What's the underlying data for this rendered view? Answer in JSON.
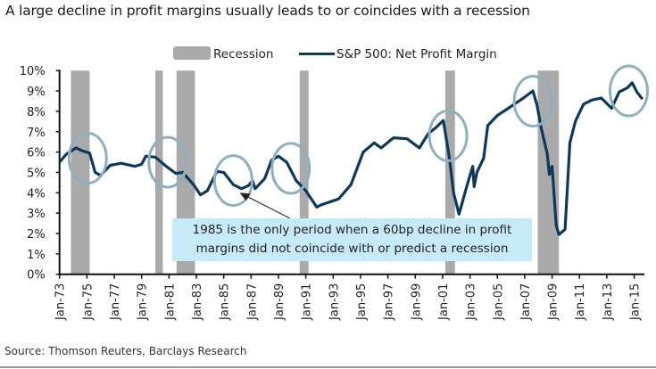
{
  "title": "A large decline in profit margins usually leads to or coincides with a recession",
  "source": "Source: Thomson Reuters, Barclays Research",
  "chart_data": {
    "type": "line",
    "title": "A large decline in profit margins usually leads to or coincides with a recession",
    "xlabel": "",
    "ylabel": "",
    "xlim": [
      1973,
      2015.75
    ],
    "ylim": [
      0,
      10
    ],
    "grid": false,
    "legend_position": "top",
    "legend": [
      {
        "label": "Recession",
        "kind": "band",
        "color": "#aaaaaa"
      },
      {
        "label": "S&P 500: Net Profit Margin",
        "kind": "line",
        "color": "#0d3a5c"
      }
    ],
    "y_ticks": [
      "0%",
      "1%",
      "2%",
      "3%",
      "4%",
      "5%",
      "6%",
      "7%",
      "8%",
      "9%",
      "10%"
    ],
    "x_ticks": [
      {
        "label": "Jan-73",
        "x": 1973
      },
      {
        "label": "Jan-75",
        "x": 1975
      },
      {
        "label": "Jan-77",
        "x": 1977
      },
      {
        "label": "Jan-79",
        "x": 1979
      },
      {
        "label": "Jan-81",
        "x": 1981
      },
      {
        "label": "Jan-83",
        "x": 1983
      },
      {
        "label": "Jan-85",
        "x": 1985
      },
      {
        "label": "Jan-87",
        "x": 1987
      },
      {
        "label": "Jan-89",
        "x": 1989
      },
      {
        "label": "Jan-91",
        "x": 1991
      },
      {
        "label": "Jan-93",
        "x": 1993
      },
      {
        "label": "Jan-95",
        "x": 1995
      },
      {
        "label": "Jan-97",
        "x": 1997
      },
      {
        "label": "Jan-99",
        "x": 1999
      },
      {
        "label": "Jan-01",
        "x": 2001
      },
      {
        "label": "Jan-03",
        "x": 2003
      },
      {
        "label": "Jan-05",
        "x": 2005
      },
      {
        "label": "Jan-07",
        "x": 2007
      },
      {
        "label": "Jan-09",
        "x": 2009
      },
      {
        "label": "Jan-11",
        "x": 2011
      },
      {
        "label": "Jan-13",
        "x": 2013
      },
      {
        "label": "Jan-15",
        "x": 2015
      }
    ],
    "recessions": [
      [
        1973.83,
        1975.2
      ],
      [
        1980.0,
        1980.55
      ],
      [
        1981.55,
        1982.9
      ],
      [
        1990.55,
        1991.2
      ],
      [
        2001.2,
        2001.9
      ],
      [
        2007.95,
        2009.5
      ]
    ],
    "series": [
      {
        "name": "S&P 500: Net Profit Margin",
        "color": "#0d3a5c",
        "x": [
          1973.0,
          1973.5,
          1974.2,
          1974.7,
          1975.2,
          1975.6,
          1976.0,
          1976.7,
          1977.5,
          1978.5,
          1979.0,
          1979.3,
          1980.0,
          1980.8,
          1981.5,
          1982.0,
          1982.8,
          1983.3,
          1983.8,
          1984.5,
          1985.0,
          1985.7,
          1986.3,
          1986.8,
          1987.1,
          1987.3,
          1988.0,
          1988.5,
          1989.0,
          1989.6,
          1990.3,
          1991.0,
          1991.8,
          1992.1,
          1993.4,
          1994.3,
          1995.2,
          1996.0,
          1996.5,
          1997.4,
          1998.4,
          1999.3,
          1999.95,
          2000.5,
          2001.05,
          2001.5,
          2001.8,
          2002.2,
          2002.8,
          2003.2,
          2003.3,
          2003.5,
          2004.0,
          2004.3,
          2005.0,
          2005.8,
          2006.9,
          2007.6,
          2007.9,
          2008.2,
          2008.65,
          2008.8,
          2009.0,
          2009.3,
          2009.5,
          2009.95,
          2010.3,
          2010.7,
          2011.3,
          2011.9,
          2012.6,
          2013.35,
          2013.9,
          2014.5,
          2014.85,
          2015.2,
          2015.6
        ],
        "y": [
          5.5,
          5.9,
          6.2,
          6.05,
          5.95,
          5.0,
          4.85,
          5.35,
          5.45,
          5.3,
          5.4,
          5.8,
          5.75,
          5.3,
          4.95,
          5.0,
          4.4,
          3.9,
          4.1,
          5.05,
          5.0,
          4.4,
          4.2,
          4.35,
          4.6,
          4.2,
          4.7,
          5.6,
          5.8,
          5.5,
          4.6,
          4.1,
          3.3,
          3.4,
          3.7,
          4.4,
          6.0,
          6.45,
          6.2,
          6.7,
          6.65,
          6.2,
          6.9,
          7.2,
          7.55,
          5.7,
          4.0,
          2.95,
          4.4,
          5.3,
          4.3,
          5.0,
          5.7,
          7.3,
          7.8,
          8.15,
          8.65,
          9.0,
          8.3,
          7.2,
          5.9,
          4.9,
          5.3,
          2.4,
          1.95,
          2.2,
          6.45,
          7.5,
          8.35,
          8.55,
          8.65,
          8.15,
          8.95,
          9.15,
          9.4,
          8.95,
          8.6
        ]
      }
    ],
    "highlight_circles": [
      {
        "x": 1975.06,
        "y": 5.7
      },
      {
        "x": 1980.9,
        "y": 5.5
      },
      {
        "x": 1985.7,
        "y": 4.6
      },
      {
        "x": 1989.9,
        "y": 5.2
      },
      {
        "x": 2001.4,
        "y": 6.8
      },
      {
        "x": 2007.6,
        "y": 8.5
      },
      {
        "x": 2014.6,
        "y": 9.0
      }
    ],
    "circle_color": "#8fb0bf",
    "annotation": {
      "line1": "1985 is the only period when  a 60bp decline in profit",
      "line2": "margins did not coincide with or predict a recession",
      "points_to": {
        "x": 1986.3,
        "y": 4.0
      },
      "background": "#c6eaf8"
    }
  }
}
